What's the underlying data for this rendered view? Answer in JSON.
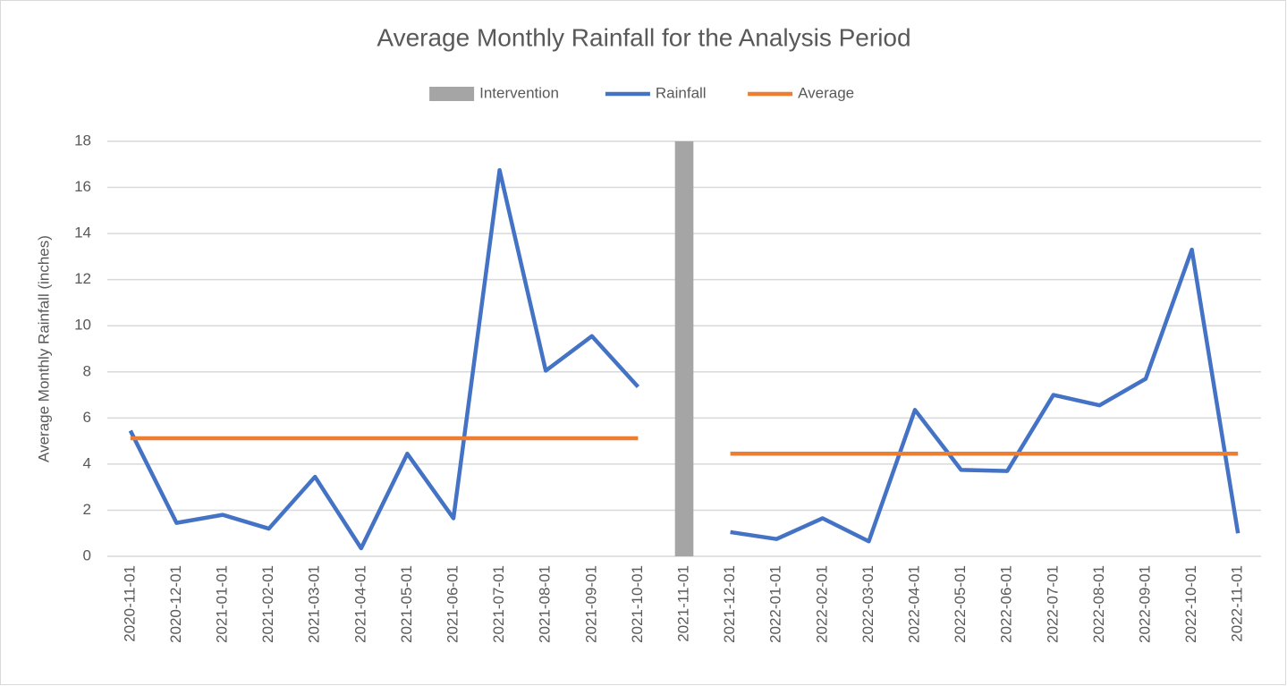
{
  "chart_data": {
    "type": "line",
    "title": "Average Monthly Rainfall for the Analysis Period",
    "y_label": "Average Monthly Rainfall (inches)",
    "categories": [
      "2020-11-01",
      "2020-12-01",
      "2021-01-01",
      "2021-02-01",
      "2021-03-01",
      "2021-04-01",
      "2021-05-01",
      "2021-06-01",
      "2021-07-01",
      "2021-08-01",
      "2021-09-01",
      "2021-10-01",
      "2021-11-01",
      "2021-12-01",
      "2022-01-01",
      "2022-02-01",
      "2022-03-01",
      "2022-04-01",
      "2022-05-01",
      "2022-06-01",
      "2022-07-01",
      "2022-08-01",
      "2022-09-01",
      "2022-10-01",
      "2022-11-01"
    ],
    "series": [
      {
        "name": "Intervention",
        "type": "bar",
        "color": "#a5a5a5",
        "values": [
          null,
          null,
          null,
          null,
          null,
          null,
          null,
          null,
          null,
          null,
          null,
          null,
          18,
          null,
          null,
          null,
          null,
          null,
          null,
          null,
          null,
          null,
          null,
          null,
          null
        ]
      },
      {
        "name": "Rainfall",
        "type": "line",
        "color": "#4472c4",
        "values": [
          5.45,
          1.45,
          1.8,
          1.2,
          3.45,
          0.35,
          4.45,
          1.65,
          16.75,
          8.05,
          9.55,
          7.35,
          null,
          1.05,
          0.75,
          1.65,
          0.65,
          6.35,
          3.75,
          3.7,
          7.0,
          6.55,
          7.7,
          13.3,
          1.0
        ]
      },
      {
        "name": "Average",
        "type": "line",
        "color": "#ed7d31",
        "values": [
          5.12,
          5.12,
          5.12,
          5.12,
          5.12,
          5.12,
          5.12,
          5.12,
          5.12,
          5.12,
          5.12,
          5.12,
          null,
          4.45,
          4.45,
          4.45,
          4.45,
          4.45,
          4.45,
          4.45,
          4.45,
          4.45,
          4.45,
          4.45,
          4.45
        ]
      }
    ],
    "ylim": [
      0,
      18
    ],
    "yticks": [
      0,
      2,
      4,
      6,
      8,
      10,
      12,
      14,
      16,
      18
    ],
    "grid": true,
    "legend": "top"
  }
}
